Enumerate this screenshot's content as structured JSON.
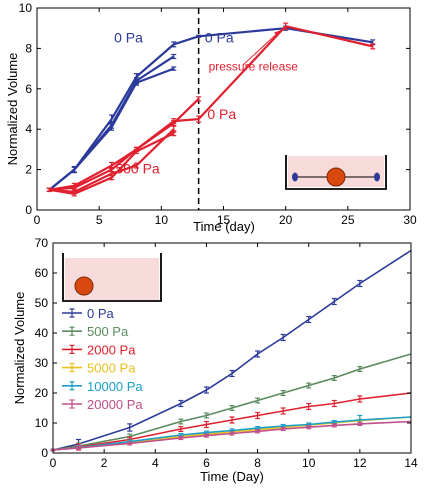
{
  "chart_data": [
    {
      "type": "line",
      "xlabel": "Time (day)",
      "ylabel": "Normalized Volume",
      "xlim": [
        0,
        30
      ],
      "ylim": [
        0,
        10
      ],
      "xticks": [
        0,
        5,
        10,
        15,
        20,
        25,
        30
      ],
      "yticks": [
        0,
        2,
        4,
        6,
        8,
        10
      ],
      "grid": false,
      "vline_x": 13,
      "colors": {
        "blue": "#2b3a9a",
        "red": "#e0202e"
      },
      "series": [
        {
          "color": "blue",
          "x": [
            1,
            3,
            6,
            8,
            11,
            13,
            20,
            27
          ],
          "y": [
            1.0,
            2.0,
            4.5,
            6.6,
            8.2,
            8.6,
            9.0,
            8.3
          ],
          "err": [
            0.08,
            0.15,
            0.2,
            0.15,
            0.12,
            0.05,
            0.1,
            0.12
          ]
        },
        {
          "color": "blue",
          "x": [
            1,
            3,
            6,
            8,
            11
          ],
          "y": [
            1.0,
            2.0,
            4.2,
            6.4,
            7.6
          ],
          "err": [
            0.08,
            0.12,
            0.15,
            0.15,
            0.1
          ]
        },
        {
          "color": "blue",
          "x": [
            1,
            3,
            6,
            8,
            11
          ],
          "y": [
            1.0,
            2.0,
            4.1,
            6.3,
            7.0
          ],
          "err": [
            0.08,
            0.12,
            0.15,
            0.12,
            0.08
          ]
        },
        {
          "color": "red",
          "x": [
            1,
            3,
            6,
            8,
            11,
            13,
            20,
            27
          ],
          "y": [
            1.0,
            1.2,
            2.2,
            3.0,
            4.4,
            4.5,
            9.1,
            8.1
          ],
          "err": [
            0.08,
            0.12,
            0.15,
            0.1,
            0.12,
            0.15,
            0.15,
            0.12
          ]
        },
        {
          "color": "red",
          "x": [
            1,
            3,
            6,
            8,
            11,
            13
          ],
          "y": [
            1.0,
            1.1,
            2.0,
            3.0,
            4.3,
            5.5
          ],
          "err": [
            0.08,
            0.1,
            0.1,
            0.1,
            0.12,
            0.1
          ]
        },
        {
          "color": "red",
          "x": [
            1,
            3,
            6,
            8,
            11
          ],
          "y": [
            1.0,
            0.9,
            1.8,
            2.2,
            4.0
          ],
          "err": [
            0.08,
            0.1,
            0.1,
            0.12,
            0.15
          ]
        },
        {
          "color": "red",
          "x": [
            1,
            3,
            6,
            8,
            11
          ],
          "y": [
            1.0,
            0.8,
            1.6,
            2.9,
            3.8
          ],
          "err": [
            0.08,
            0.1,
            0.1,
            0.1,
            0.12
          ]
        }
      ],
      "annotations": [
        {
          "text": "0 Pa",
          "color": "blue",
          "x": 6.2,
          "y": 8.3
        },
        {
          "text": "0 Pa",
          "color": "blue",
          "x": 13.5,
          "y": 8.3
        },
        {
          "text": "pressure release",
          "color": "red",
          "x": 13.8,
          "y": 6.9
        },
        {
          "text": "0 Pa",
          "color": "red",
          "x": 13.7,
          "y": 4.5
        },
        {
          "text": "500 Pa",
          "color": "red",
          "x": 6.3,
          "y": 1.8
        }
      ]
    },
    {
      "type": "line",
      "xlabel": "Time (Day)",
      "ylabel": "Normalized Volume",
      "xlim": [
        0,
        14
      ],
      "ylim": [
        0,
        70
      ],
      "xticks": [
        0,
        2,
        4,
        6,
        8,
        10,
        12,
        14
      ],
      "yticks": [
        0,
        10,
        20,
        30,
        40,
        50,
        60,
        70
      ],
      "grid": false,
      "legend_position": "upper-left",
      "series": [
        {
          "name": "0 Pa",
          "color": "#2b3a9a",
          "x": [
            0,
            1,
            3,
            5,
            6,
            7,
            8,
            9,
            10,
            11,
            12,
            14
          ],
          "y": [
            1.0,
            3.0,
            8.5,
            16.5,
            21.0,
            26.5,
            33.0,
            38.5,
            44.5,
            50.5,
            56.5,
            67.5
          ],
          "err": [
            0.2,
            1.5,
            1.2,
            1.0,
            1.0,
            1.0,
            1.0,
            1.0,
            1.0,
            1.0,
            1.0,
            0
          ]
        },
        {
          "name": "500 Pa",
          "color": "#5b8a5e",
          "x": [
            0,
            1,
            3,
            5,
            6,
            7,
            8,
            9,
            10,
            11,
            12,
            14
          ],
          "y": [
            1.0,
            2.3,
            5.5,
            10.5,
            12.5,
            15.0,
            17.5,
            20.0,
            22.5,
            25.0,
            28.0,
            33.0
          ],
          "err": [
            0.2,
            1.0,
            0.8,
            0.8,
            0.8,
            0.8,
            0.8,
            0.8,
            0.8,
            0.8,
            0.8,
            0
          ]
        },
        {
          "name": "2000 Pa",
          "color": "#e0202e",
          "x": [
            0,
            1,
            3,
            5,
            6,
            7,
            8,
            9,
            10,
            11,
            12,
            14
          ],
          "y": [
            1.0,
            2.0,
            4.5,
            8.0,
            9.5,
            11.0,
            12.5,
            14.0,
            15.5,
            16.5,
            18.0,
            20.0
          ],
          "err": [
            0.2,
            1.0,
            0.8,
            0.8,
            1.0,
            1.0,
            1.0,
            1.0,
            1.0,
            1.0,
            1.0,
            0
          ]
        },
        {
          "name": "5000 Pa",
          "color": "#e8c020",
          "x": [
            0,
            1,
            3,
            5,
            6,
            7,
            8,
            9,
            10,
            11,
            12,
            14
          ],
          "y": [
            1.0,
            1.8,
            3.5,
            5.5,
            6.3,
            7.0,
            7.8,
            8.5,
            9.3,
            10.0,
            10.8,
            12.0
          ],
          "err": [
            0.2,
            0.6,
            0.5,
            0.5,
            0.5,
            0.5,
            0.5,
            0.5,
            0.5,
            0.5,
            0.5,
            0
          ]
        },
        {
          "name": "10000 Pa",
          "color": "#1aa0c8",
          "x": [
            0,
            1,
            3,
            5,
            6,
            7,
            8,
            9,
            10,
            11,
            12,
            14
          ],
          "y": [
            1.0,
            1.8,
            3.8,
            6.0,
            6.8,
            7.5,
            8.3,
            9.0,
            9.5,
            10.3,
            11.0,
            12.0
          ],
          "err": [
            0.2,
            0.6,
            0.5,
            0.5,
            0.5,
            0.5,
            0.5,
            0.5,
            0.5,
            0.5,
            1.5,
            0
          ]
        },
        {
          "name": "20000 Pa",
          "color": "#c0508a",
          "x": [
            0,
            1,
            3,
            5,
            6,
            7,
            8,
            9,
            10,
            11,
            12,
            14
          ],
          "y": [
            1.0,
            1.7,
            3.2,
            5.0,
            5.8,
            6.5,
            7.2,
            8.0,
            8.6,
            9.2,
            9.7,
            10.5
          ],
          "err": [
            0.2,
            0.5,
            0.5,
            0.5,
            0.5,
            0.5,
            0.5,
            0.5,
            0.5,
            0.5,
            0.5,
            0
          ]
        }
      ]
    }
  ]
}
